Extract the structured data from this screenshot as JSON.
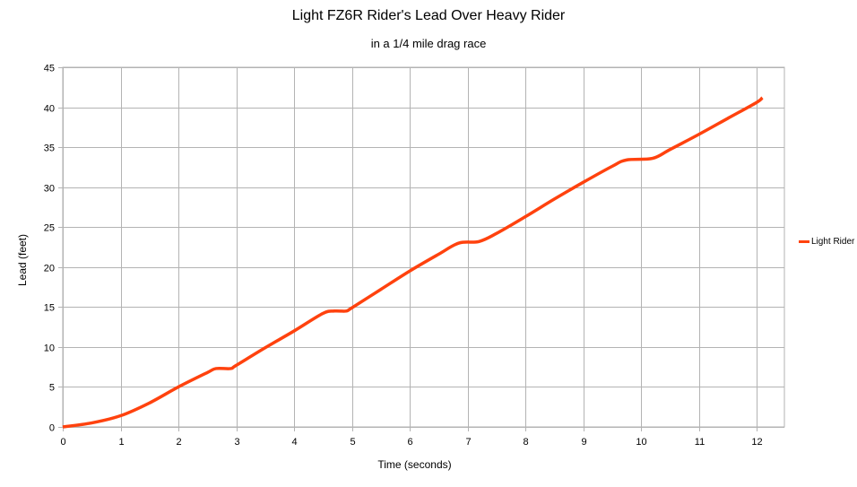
{
  "chart_data": {
    "type": "line",
    "title": "Light FZ6R Rider's Lead Over Heavy Rider",
    "subtitle": "in a 1/4 mile drag race",
    "xlabel": "Time (seconds)",
    "ylabel": "Lead (feet)",
    "xlim": [
      0,
      12.5
    ],
    "ylim": [
      0,
      45
    ],
    "x_ticks": [
      0,
      1,
      2,
      3,
      4,
      5,
      6,
      7,
      8,
      9,
      10,
      11,
      12
    ],
    "y_ticks": [
      0,
      5,
      10,
      15,
      20,
      25,
      30,
      35,
      40,
      45
    ],
    "grid": true,
    "legend_position": "right",
    "series": [
      {
        "name": "Light Rider",
        "color": "#ff420e",
        "x": [
          0,
          0.5,
          1,
          1.5,
          2,
          2.5,
          2.65,
          2.9,
          3,
          3.5,
          4,
          4.5,
          4.7,
          4.9,
          5,
          5.5,
          6,
          6.5,
          6.85,
          7.2,
          7.5,
          8,
          8.5,
          9,
          9.5,
          9.75,
          10.2,
          10.5,
          11,
          11.5,
          12,
          12.1
        ],
        "values": [
          0,
          0.5,
          1.4,
          3.0,
          5.0,
          6.8,
          7.3,
          7.3,
          7.7,
          9.9,
          12.0,
          14.2,
          14.5,
          14.5,
          14.9,
          17.2,
          19.5,
          21.6,
          23.0,
          23.2,
          24.2,
          26.3,
          28.5,
          30.6,
          32.6,
          33.4,
          33.6,
          34.7,
          36.6,
          38.6,
          40.6,
          41.2
        ]
      }
    ]
  },
  "colors": {
    "grid": "#b3b3b3",
    "line": "#ff420e"
  }
}
